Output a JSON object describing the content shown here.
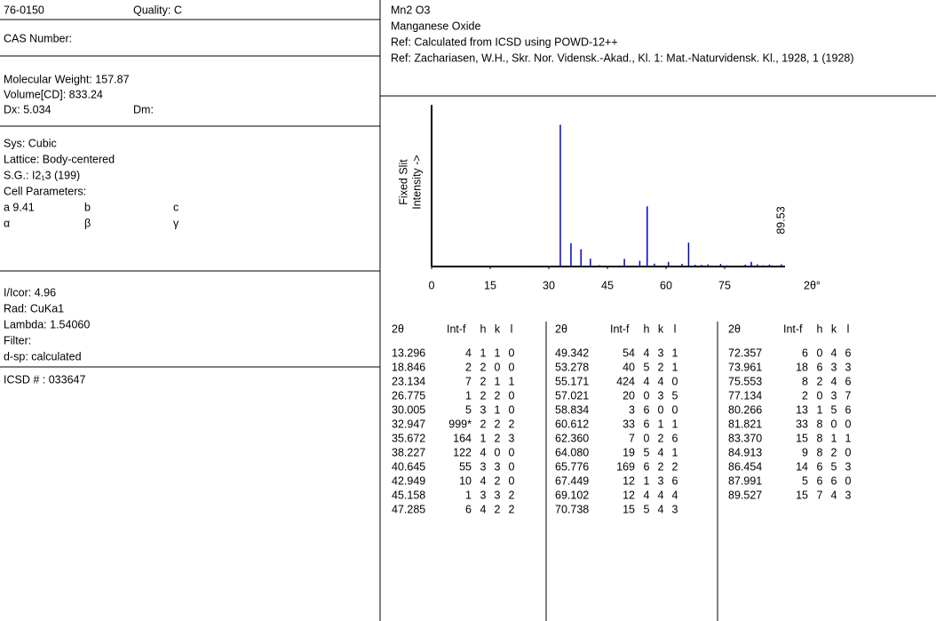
{
  "left_panel": {
    "pdf_number": "76-0150",
    "quality": "Quality: C",
    "cas": "CAS Number:",
    "molecular_weight": "Molecular Weight:  157.87",
    "volume": "Volume[CD]:  833.24",
    "dx": "Dx:  5.034",
    "dm": "Dm:",
    "system": "Sys: Cubic",
    "lattice": "Lattice: Body-centered",
    "space_group": "S.G.: I2₁3 (199)",
    "cell_parameters": "Cell Parameters:",
    "a": "a  9.41",
    "b": "b",
    "c": "c",
    "alpha": "α",
    "beta": "β",
    "gamma": "γ",
    "icor": "I/Icor:  4.96",
    "radiation": "Rad: CuKa1",
    "lambda": "Lambda: 1.54060",
    "filter": "Filter:",
    "d_spacing": "d-sp: calculated",
    "icsd": "ICSD # : 033647"
  },
  "header": {
    "formula": "Mn2 O3",
    "name": "Manganese Oxide",
    "ref1": "Ref:  Calculated from ICSD using POWD-12++",
    "ref2": "Ref: Zachariasen, W.H., Skr. Nor. Vidensk.-Akad., Kl. 1: Mat.-Naturvidensk. Kl., 1928, 1 (1928)"
  },
  "chart": {
    "type": "stick",
    "xlim": [
      0,
      90
    ],
    "ylim": [
      0,
      1140
    ],
    "xticks": [
      0,
      15,
      30,
      45,
      60,
      75
    ],
    "x_label": "2θ°",
    "y_label": [
      "Fixed   Slit",
      "Intensity   ->"
    ],
    "annotation": "89.53",
    "color": "#0000cc"
  },
  "table": {
    "columns": [
      "2θ",
      "Int-f",
      "h",
      "k",
      "l"
    ],
    "groups": [
      {
        "rows": [
          [
            "13.296",
            "4",
            "1",
            "1",
            "0"
          ],
          [
            "18.846",
            "2",
            "2",
            "0",
            "0"
          ],
          [
            "23.134",
            "7",
            "2",
            "1",
            "1"
          ],
          [
            "26.775",
            "1",
            "2",
            "2",
            "0"
          ],
          [
            "30.005",
            "5",
            "3",
            "1",
            "0"
          ],
          [
            "32.947",
            "999*",
            "2",
            "2",
            "2"
          ],
          [
            "35.672",
            "164",
            "1",
            "2",
            "3"
          ],
          [
            "38.227",
            "122",
            "4",
            "0",
            "0"
          ],
          [
            "40.645",
            "55",
            "3",
            "3",
            "0"
          ],
          [
            "42.949",
            "10",
            "4",
            "2",
            "0"
          ],
          [
            "45.158",
            "1",
            "3",
            "3",
            "2"
          ],
          [
            "47.285",
            "6",
            "4",
            "2",
            "2"
          ]
        ]
      },
      {
        "rows": [
          [
            "49.342",
            "54",
            "4",
            "3",
            "1"
          ],
          [
            "53.278",
            "40",
            "5",
            "2",
            "1"
          ],
          [
            "55.171",
            "424",
            "4",
            "4",
            "0"
          ],
          [
            "57.021",
            "20",
            "0",
            "3",
            "5"
          ],
          [
            "58.834",
            "3",
            "6",
            "0",
            "0"
          ],
          [
            "60.612",
            "33",
            "6",
            "1",
            "1"
          ],
          [
            "62.360",
            "7",
            "0",
            "2",
            "6"
          ],
          [
            "64.080",
            "19",
            "5",
            "4",
            "1"
          ],
          [
            "65.776",
            "169",
            "6",
            "2",
            "2"
          ],
          [
            "67.449",
            "12",
            "1",
            "3",
            "6"
          ],
          [
            "69.102",
            "12",
            "4",
            "4",
            "4"
          ],
          [
            "70.738",
            "15",
            "5",
            "4",
            "3"
          ]
        ]
      },
      {
        "rows": [
          [
            "72.357",
            "6",
            "0",
            "4",
            "6"
          ],
          [
            "73.961",
            "18",
            "6",
            "3",
            "3"
          ],
          [
            "75.553",
            "8",
            "2",
            "4",
            "6"
          ],
          [
            "77.134",
            "2",
            "0",
            "3",
            "7"
          ],
          [
            "80.266",
            "13",
            "1",
            "5",
            "6"
          ],
          [
            "81.821",
            "33",
            "8",
            "0",
            "0"
          ],
          [
            "83.370",
            "15",
            "8",
            "1",
            "1"
          ],
          [
            "84.913",
            "9",
            "8",
            "2",
            "0"
          ],
          [
            "86.454",
            "14",
            "6",
            "5",
            "3"
          ],
          [
            "87.991",
            "5",
            "6",
            "6",
            "0"
          ],
          [
            "89.527",
            "15",
            "7",
            "4",
            "3"
          ]
        ]
      }
    ]
  }
}
